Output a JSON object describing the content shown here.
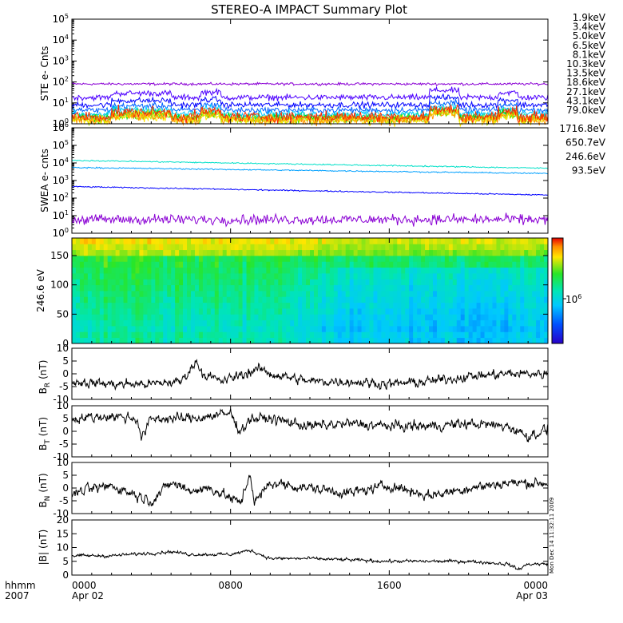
{
  "title": "STEREO-A IMPACT Summary Plot",
  "time_axis": {
    "corner_top": "hhmm",
    "corner_bottom": "2007",
    "ticks": [
      {
        "time": "0000",
        "date": "Apr 02",
        "hours": 0
      },
      {
        "time": "0800",
        "date": "",
        "hours": 8
      },
      {
        "time": "1600",
        "date": "",
        "hours": 16
      },
      {
        "time": "0000",
        "date": "Apr 03",
        "hours": 24
      }
    ]
  },
  "timestamp": "Mon Dec 14 11:32:11 2009",
  "chart_data": [
    {
      "type": "line",
      "ylabel": "STE e- Cnts",
      "yscale": "log",
      "ylim": [
        1,
        100000
      ],
      "ytick_exponents": [
        0,
        1,
        2,
        3,
        4,
        5
      ],
      "x_range_hours": [
        0,
        24
      ],
      "series": [
        {
          "name": "1.9keV",
          "color": "#8a00d4",
          "level": 80,
          "jitter": 0.05
        },
        {
          "name": "3.4keV",
          "color": "#4d00ff",
          "level": 18,
          "jitter": 0.12
        },
        {
          "name": "5.0keV",
          "color": "#0000ff",
          "level": 8,
          "jitter": 0.12
        },
        {
          "name": "6.5keV",
          "color": "#0060ff",
          "level": 4.5,
          "jitter": 0.12
        },
        {
          "name": "8.1keV",
          "color": "#00c8ff",
          "level": 3,
          "jitter": 0.14
        },
        {
          "name": "10.3keV",
          "color": "#00d8a0",
          "level": 2.2,
          "jitter": 0.16
        },
        {
          "name": "13.5keV",
          "color": "#00e000",
          "level": 1.8,
          "jitter": 0.18
        },
        {
          "name": "18.6keV",
          "color": "#b4e600",
          "level": 1.6,
          "jitter": 0.2
        },
        {
          "name": "27.1keV",
          "color": "#ffe600",
          "level": 1.5,
          "jitter": 0.2
        },
        {
          "name": "43.1keV",
          "color": "#ff9600",
          "level": 1.6,
          "jitter": 0.22
        },
        {
          "name": "79.0keV",
          "color": "#ff2800",
          "level": 2.2,
          "jitter": 0.22
        }
      ]
    },
    {
      "type": "line",
      "ylabel": "SWEA e- cnts",
      "yscale": "log",
      "ylim": [
        1,
        1000000
      ],
      "ytick_exponents": [
        0,
        1,
        2,
        3,
        4,
        5,
        6
      ],
      "x_range_hours": [
        0,
        24
      ],
      "series": [
        {
          "name": "1716.8eV",
          "color": "#8a00d4",
          "start": 6,
          "end": 6,
          "jitter": 0.25
        },
        {
          "name": "650.7eV",
          "color": "#0000ff",
          "start": 450,
          "end": 150,
          "jitter": 0.03
        },
        {
          "name": "246.6eV",
          "color": "#00a0ff",
          "start": 5500,
          "end": 2500,
          "jitter": 0.03
        },
        {
          "name": "93.5eV",
          "color": "#00e0c8",
          "start": 14000,
          "end": 5000,
          "jitter": 0.03
        }
      ]
    },
    {
      "type": "heatmap",
      "ylabel": "246.6 eV",
      "ylim": [
        0,
        180
      ],
      "yticks": [
        0,
        50,
        100,
        150
      ],
      "x_range_hours": [
        0,
        24
      ],
      "colorbar_label": "10",
      "colorbar_exponent": "6"
    },
    {
      "type": "line",
      "ylabel_main": "B",
      "ylabel_sub": "R",
      "ylabel_unit": "(nT)",
      "ylim": [
        -10,
        10
      ],
      "yticks": [
        -10,
        -5,
        0,
        5,
        10
      ],
      "x_range_hours": [
        0,
        24
      ],
      "keyframes": [
        [
          0,
          -3
        ],
        [
          2,
          -4
        ],
        [
          4,
          -4
        ],
        [
          5.5,
          -3
        ],
        [
          6.3,
          5
        ],
        [
          6.6,
          0
        ],
        [
          7.5,
          -3
        ],
        [
          9.5,
          2
        ],
        [
          10,
          0
        ],
        [
          12,
          -3
        ],
        [
          14,
          -3
        ],
        [
          16,
          -4
        ],
        [
          18,
          -3
        ],
        [
          20,
          -1
        ],
        [
          22,
          0
        ],
        [
          24,
          0
        ]
      ],
      "noise": 2.2
    },
    {
      "type": "line",
      "ylabel_main": "B",
      "ylabel_sub": "T",
      "ylabel_unit": "(nT)",
      "ylim": [
        -10,
        10
      ],
      "yticks": [
        -10,
        -5,
        0,
        5,
        10
      ],
      "x_range_hours": [
        0,
        24
      ],
      "keyframes": [
        [
          0,
          5
        ],
        [
          2,
          6
        ],
        [
          3.3,
          5
        ],
        [
          3.5,
          -3
        ],
        [
          4,
          5
        ],
        [
          6,
          5
        ],
        [
          8,
          7
        ],
        [
          8.5,
          0
        ],
        [
          9,
          5
        ],
        [
          10,
          5
        ],
        [
          12,
          2
        ],
        [
          14,
          3
        ],
        [
          16,
          2
        ],
        [
          18,
          2
        ],
        [
          20,
          3
        ],
        [
          22,
          2
        ],
        [
          23,
          -2
        ],
        [
          24,
          1
        ]
      ],
      "noise": 2.4
    },
    {
      "type": "line",
      "ylabel_main": "B",
      "ylabel_sub": "N",
      "ylabel_unit": "(nT)",
      "ylim": [
        -10,
        10
      ],
      "yticks": [
        -10,
        -5,
        0,
        5,
        10
      ],
      "x_range_hours": [
        0,
        24
      ],
      "keyframes": [
        [
          0,
          -2
        ],
        [
          2,
          1
        ],
        [
          4,
          -5
        ],
        [
          5,
          2
        ],
        [
          6,
          -1
        ],
        [
          7,
          0
        ],
        [
          8.5,
          -6
        ],
        [
          9,
          6
        ],
        [
          9.2,
          -6
        ],
        [
          10,
          2
        ],
        [
          12,
          0
        ],
        [
          14,
          -2
        ],
        [
          16,
          1
        ],
        [
          17.5,
          -2
        ],
        [
          18,
          -3
        ],
        [
          20,
          0
        ],
        [
          22,
          2
        ],
        [
          24,
          2
        ]
      ],
      "noise": 2.4
    },
    {
      "type": "line",
      "ylabel_main": "|B|",
      "ylabel_sub": "",
      "ylabel_unit": "(nT)",
      "ylim": [
        0,
        20
      ],
      "yticks": [
        0,
        5,
        10,
        15,
        20
      ],
      "x_range_hours": [
        0,
        24
      ],
      "keyframes": [
        [
          0,
          7
        ],
        [
          2,
          7
        ],
        [
          4,
          8
        ],
        [
          5,
          8.5
        ],
        [
          6,
          7.5
        ],
        [
          8,
          7.5
        ],
        [
          9,
          9
        ],
        [
          10,
          6
        ],
        [
          12,
          6
        ],
        [
          14,
          5.5
        ],
        [
          16,
          5
        ],
        [
          18,
          5
        ],
        [
          20,
          5
        ],
        [
          22,
          4
        ],
        [
          22.5,
          2
        ],
        [
          23,
          4
        ],
        [
          24,
          4
        ]
      ],
      "noise": 0.7
    }
  ]
}
